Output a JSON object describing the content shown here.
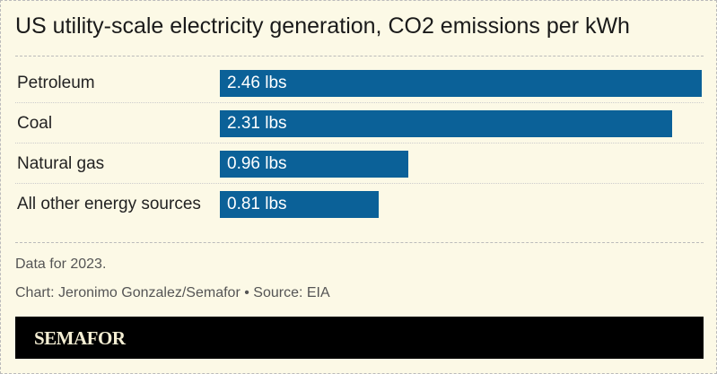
{
  "chart_data": {
    "type": "bar",
    "orientation": "horizontal",
    "title": "US utility-scale electricity generation, CO2 emissions per kWh",
    "categories": [
      "Petroleum",
      "Coal",
      "Natural gas",
      "All other energy sources"
    ],
    "values": [
      2.46,
      2.31,
      0.96,
      0.81
    ],
    "value_labels": [
      "2.46 lbs",
      "2.31 lbs",
      "0.96 lbs",
      "0.81 lbs"
    ],
    "unit": "lbs",
    "bar_color": "#0b6198",
    "grid": false,
    "xlim": [
      0,
      2.46
    ]
  },
  "notes": {
    "data_note": "Data for 2023.",
    "credit": "Chart: Jeronimo Gonzalez/Semafor • Source: EIA"
  },
  "brand": "SEMAFOR"
}
